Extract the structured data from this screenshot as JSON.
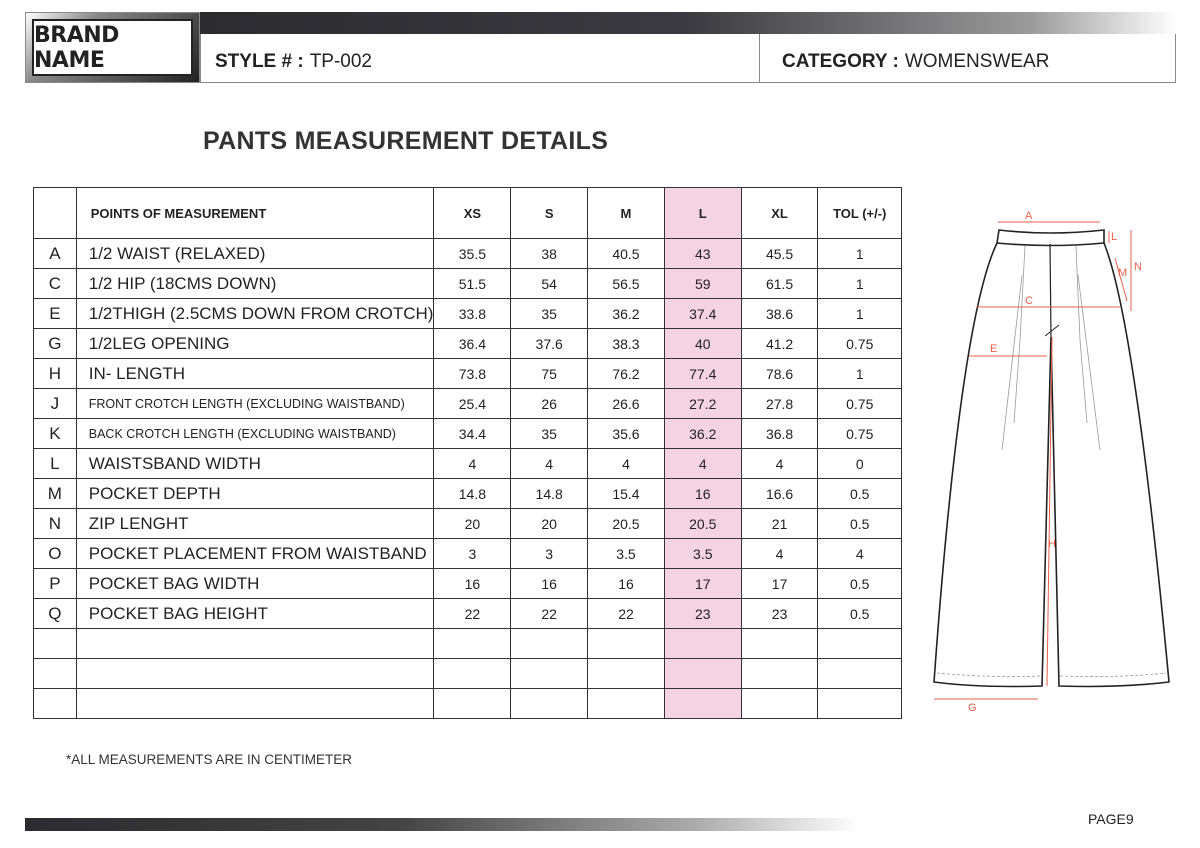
{
  "header": {
    "brand": "BRAND NAME",
    "style_label": "STYLE # :",
    "style_value": "TP-002",
    "category_label": "CATEGORY :",
    "category_value": "WOMENSWEAR"
  },
  "title": "PANTS MEASUREMENT DETAILS",
  "table": {
    "columns": [
      "POINTS OF MEASUREMENT",
      "XS",
      "S",
      "M",
      "L",
      "XL",
      "TOL (+/-)"
    ],
    "highlight_column": "L",
    "highlight_color": "#f6d3e2",
    "rows": [
      {
        "code": "A",
        "pom": "1/2 WAIST (RELAXED)",
        "v": [
          "35.5",
          "38",
          "40.5",
          "43",
          "45.5",
          "1"
        ]
      },
      {
        "code": "C",
        "pom": "1/2 HIP  (18CMS DOWN)",
        "v": [
          "51.5",
          "54",
          "56.5",
          "59",
          "61.5",
          "1"
        ]
      },
      {
        "code": "E",
        "pom": "1/2THIGH (2.5CMS DOWN FROM CROTCH)",
        "v": [
          "33.8",
          "35",
          "36.2",
          "37.4",
          "38.6",
          "1"
        ]
      },
      {
        "code": "G",
        "pom": "1/2LEG OPENING",
        "v": [
          "36.4",
          "37.6",
          "38.3",
          "40",
          "41.2",
          "0.75"
        ]
      },
      {
        "code": "H",
        "pom": "IN- LENGTH",
        "v": [
          "73.8",
          "75",
          "76.2",
          "77.4",
          "78.6",
          "1"
        ]
      },
      {
        "code": "J",
        "pom": "FRONT CROTCH LENGTH (EXCLUDING WAISTBAND)",
        "v": [
          "25.4",
          "26",
          "26.6",
          "27.2",
          "27.8",
          "0.75"
        ]
      },
      {
        "code": "K",
        "pom": "BACK CROTCH LENGTH (EXCLUDING WAISTBAND)",
        "v": [
          "34.4",
          "35",
          "35.6",
          "36.2",
          "36.8",
          "0.75"
        ]
      },
      {
        "code": "L",
        "pom": "WAISTSBAND WIDTH",
        "v": [
          "4",
          "4",
          "4",
          "4",
          "4",
          "0"
        ]
      },
      {
        "code": "M",
        "pom": "POCKET DEPTH",
        "v": [
          "14.8",
          "14.8",
          "15.4",
          "16",
          "16.6",
          "0.5"
        ]
      },
      {
        "code": "N",
        "pom": "ZIP LENGHT",
        "v": [
          "20",
          "20",
          "20.5",
          "20.5",
          "21",
          "0.5"
        ]
      },
      {
        "code": "O",
        "pom": "POCKET PLACEMENT FROM WAISTBAND",
        "v": [
          "3",
          "3",
          "3.5",
          "3.5",
          "4",
          "4"
        ]
      },
      {
        "code": "P",
        "pom": "POCKET BAG WIDTH",
        "v": [
          "16",
          "16",
          "16",
          "17",
          "17",
          "0.5"
        ]
      },
      {
        "code": "Q",
        "pom": "POCKET BAG HEIGHT",
        "v": [
          "22",
          "22",
          "22",
          "23",
          "23",
          "0.5"
        ]
      }
    ],
    "empty_rows": 3
  },
  "sketch": {
    "labels": [
      "A",
      "L",
      "N",
      "M",
      "C",
      "E",
      "H",
      "G"
    ],
    "line_color": "#e8604a"
  },
  "note": "*ALL MEASUREMENTS ARE IN CENTIMETER",
  "page": "PAGE9"
}
